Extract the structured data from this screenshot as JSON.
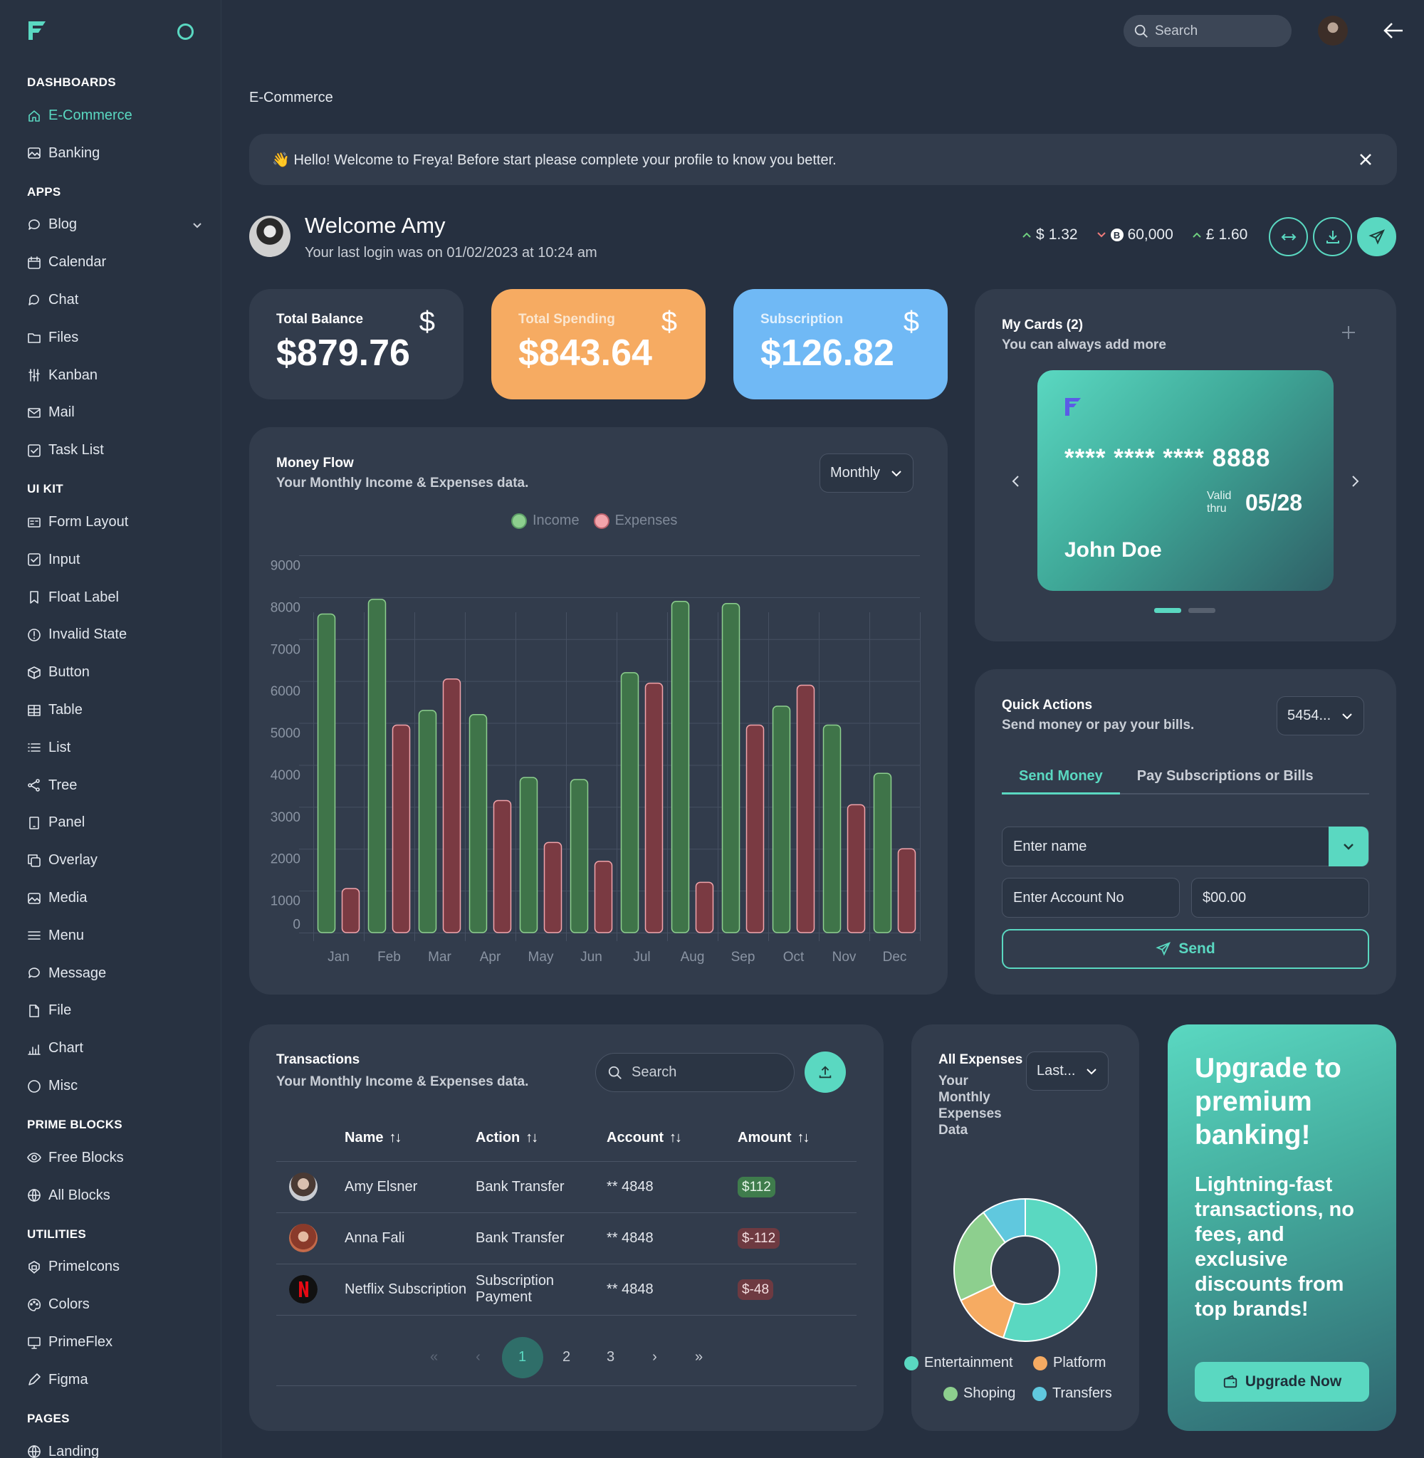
{
  "sidebar": {
    "sections": [
      {
        "title": "DASHBOARDS",
        "items": [
          {
            "label": "E-Commerce",
            "icon": "home-icon",
            "active": true
          },
          {
            "label": "Banking",
            "icon": "image-icon"
          }
        ]
      },
      {
        "title": "APPS",
        "items": [
          {
            "label": "Blog",
            "icon": "comment-icon",
            "chevron": true
          },
          {
            "label": "Calendar",
            "icon": "calendar-icon"
          },
          {
            "label": "Chat",
            "icon": "chat-icon"
          },
          {
            "label": "Files",
            "icon": "folder-icon"
          },
          {
            "label": "Kanban",
            "icon": "sliders-icon"
          },
          {
            "label": "Mail",
            "icon": "envelope-icon"
          },
          {
            "label": "Task List",
            "icon": "check-square-icon"
          }
        ]
      },
      {
        "title": "UI KIT",
        "items": [
          {
            "label": "Form Layout",
            "icon": "id-card-icon"
          },
          {
            "label": "Input",
            "icon": "check-square-icon"
          },
          {
            "label": "Float Label",
            "icon": "bookmark-icon"
          },
          {
            "label": "Invalid State",
            "icon": "exclamation-circle-icon"
          },
          {
            "label": "Button",
            "icon": "box-icon"
          },
          {
            "label": "Table",
            "icon": "table-icon"
          },
          {
            "label": "List",
            "icon": "list-icon"
          },
          {
            "label": "Tree",
            "icon": "share-icon"
          },
          {
            "label": "Panel",
            "icon": "tablet-icon"
          },
          {
            "label": "Overlay",
            "icon": "clone-icon"
          },
          {
            "label": "Media",
            "icon": "image-icon"
          },
          {
            "label": "Menu",
            "icon": "bars-icon"
          },
          {
            "label": "Message",
            "icon": "comment-icon"
          },
          {
            "label": "File",
            "icon": "file-icon"
          },
          {
            "label": "Chart",
            "icon": "chart-bar-icon"
          },
          {
            "label": "Misc",
            "icon": "circle-icon"
          }
        ]
      },
      {
        "title": "PRIME BLOCKS",
        "items": [
          {
            "label": "Free Blocks",
            "icon": "eye-icon"
          },
          {
            "label": "All Blocks",
            "icon": "globe-icon"
          }
        ]
      },
      {
        "title": "UTILITIES",
        "items": [
          {
            "label": "PrimeIcons",
            "icon": "prime-icon"
          },
          {
            "label": "Colors",
            "icon": "palette-icon"
          },
          {
            "label": "PrimeFlex",
            "icon": "desktop-icon"
          },
          {
            "label": "Figma",
            "icon": "pencil-icon"
          }
        ]
      },
      {
        "title": "PAGES",
        "items": [
          {
            "label": "Landing",
            "icon": "globe-icon"
          }
        ]
      }
    ]
  },
  "topbar": {
    "search_placeholder": "Search"
  },
  "breadcrumb": "E-Commerce",
  "banner": {
    "text": "👋 Hello! Welcome to Freya! Before start please complete your profile to know you better."
  },
  "welcome": {
    "title": "Welcome Amy",
    "subtitle": "Your last login was on 01/02/2023 at 10:24 am"
  },
  "rates": [
    {
      "symbol": "$",
      "value": "1.32",
      "trend": "up"
    },
    {
      "symbol": "B",
      "value": "60,000",
      "trend": "down"
    },
    {
      "symbol": "£",
      "value": "1.60",
      "trend": "up"
    }
  ],
  "stats": {
    "balance": {
      "label": "Total Balance",
      "value": "$879.76",
      "icon": "$"
    },
    "spending": {
      "label": "Total Spending",
      "value": "$843.64",
      "icon": "$"
    },
    "subscription": {
      "label": "Subscription",
      "value": "$126.82",
      "icon": "$"
    }
  },
  "money_flow": {
    "title": "Money Flow",
    "subtitle": "Your Monthly Income & Expenses data.",
    "period": "Monthly",
    "legend": [
      "Income",
      "Expenses"
    ]
  },
  "chart_data": {
    "type": "bar",
    "categories": [
      "Jan",
      "Feb",
      "Mar",
      "Apr",
      "May",
      "Jun",
      "Jul",
      "Aug",
      "Sep",
      "Oct",
      "Nov",
      "Dec"
    ],
    "series": [
      {
        "name": "Income",
        "color": "#4a8a57",
        "values": [
          7600,
          7950,
          5300,
          5200,
          3700,
          3650,
          6200,
          7900,
          7850,
          5400,
          4950,
          3800
        ]
      },
      {
        "name": "Expenses",
        "color": "#8b434b",
        "values": [
          1050,
          4950,
          6050,
          3150,
          2150,
          1700,
          5950,
          1200,
          4950,
          5900,
          3050,
          2000
        ]
      }
    ],
    "ylim": [
      0,
      9000
    ],
    "yticks": [
      0,
      1000,
      2000,
      3000,
      4000,
      5000,
      6000,
      7000,
      8000,
      9000
    ],
    "grid": true,
    "legend_position": "top-center"
  },
  "my_cards": {
    "title": "My Cards (2)",
    "subtitle": "You can always add more",
    "card": {
      "number": "**** **** **** 8888",
      "valid_label_1": "Valid",
      "valid_label_2": "thru",
      "expiry": "05/28",
      "holder": "John Doe"
    }
  },
  "quick_actions": {
    "title": "Quick Actions",
    "subtitle": "Send money or pay your bills.",
    "account_select": "5454...",
    "tabs": [
      "Send Money",
      "Pay Subscriptions or Bills"
    ],
    "name_placeholder": "Enter name",
    "account_placeholder": "Enter Account No",
    "amount_placeholder": "$00.00",
    "send_label": "Send"
  },
  "transactions": {
    "title": "Transactions",
    "subtitle": "Your Monthly Income & Expenses data.",
    "search_placeholder": "Search",
    "columns": [
      "Name",
      "Action",
      "Account",
      "Amount"
    ],
    "rows": [
      {
        "name": "Amy Elsner",
        "action": "Bank Transfer",
        "account": "** 4848",
        "amount": "$112",
        "positive": true
      },
      {
        "name": "Anna Fali",
        "action": "Bank Transfer",
        "account": "** 4848",
        "amount": "$-112",
        "positive": false
      },
      {
        "name": "Netflix Subscription",
        "action": "Subscription Payment",
        "account": "** 4848",
        "amount": "$-48",
        "positive": false
      }
    ],
    "pages": [
      "1",
      "2",
      "3"
    ],
    "current_page": "1"
  },
  "all_expenses": {
    "title": "All Expenses",
    "subtitle": "Your Monthly Expenses Data",
    "period": "Last...",
    "donut": [
      {
        "label": "Entertainment",
        "color": "#5ad8c1",
        "value": 55
      },
      {
        "label": "Platform",
        "color": "#f6ab62",
        "value": 13
      },
      {
        "label": "Shoping",
        "color": "#8dcf8e",
        "value": 22
      },
      {
        "label": "Transfers",
        "color": "#60c8de",
        "value": 10
      }
    ]
  },
  "upgrade": {
    "title": "Upgrade to premium banking!",
    "body": "Lightning-fast transactions, no fees, and exclusive discounts from top brands!",
    "button": "Upgrade Now"
  }
}
